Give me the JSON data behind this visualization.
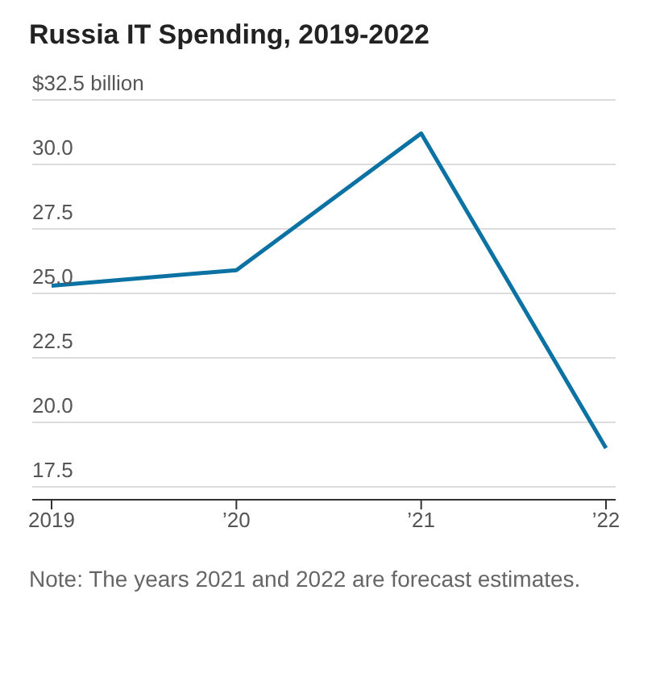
{
  "chart_data": {
    "type": "line",
    "title": "Russia IT Spending, 2019-2022",
    "categories": [
      "2019",
      "’20",
      "’21",
      "’22"
    ],
    "series": [
      {
        "color": "#0b72a3",
        "values": [
          25.3,
          25.9,
          31.2,
          19.0
        ]
      }
    ],
    "ylim": [
      17,
      32.5
    ],
    "yticks": [
      17.5,
      {
        "value": 20,
        "label": "20.0"
      },
      22.5,
      {
        "value": 25,
        "label": "25.0"
      },
      27.5,
      {
        "value": 30,
        "label": "30.0"
      },
      {
        "value": 32.5,
        "label": "$32.5 billion"
      }
    ],
    "grid": "y",
    "marker": "none",
    "line_style": "solid",
    "annotations": [
      "Note: The years 2021 and 2022 are forecast estimates."
    ]
  }
}
